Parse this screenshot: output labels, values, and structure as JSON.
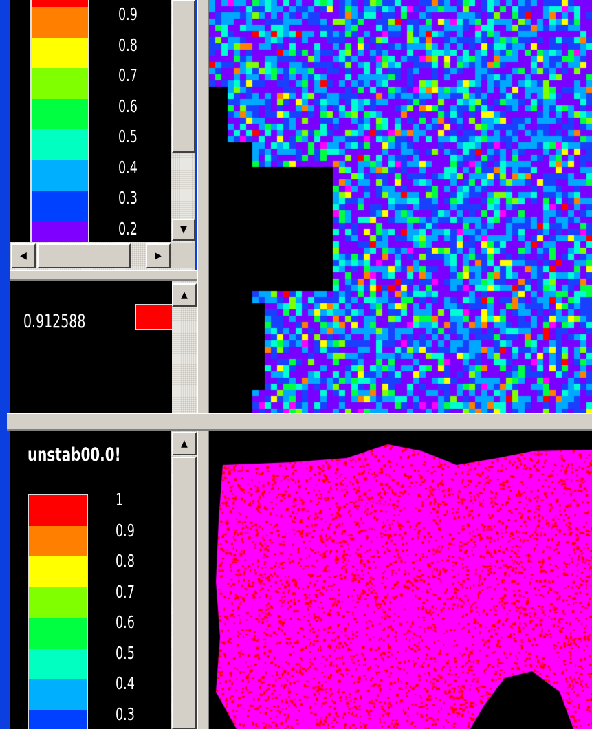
{
  "top_legend": {
    "ticks": [
      "0.9",
      "0.8",
      "0.7",
      "0.6",
      "0.5",
      "0.4",
      "0.3",
      "0.2"
    ],
    "colors": [
      "#ff8000",
      "#ffff00",
      "#80ff00",
      "#00ff40",
      "#00ffc0",
      "#00b0ff",
      "#0040ff",
      "#8000ff"
    ]
  },
  "probe": {
    "value": "0.912588",
    "swatch_color": "#ff0000"
  },
  "bottom_panel": {
    "title": "unstab00.0!",
    "ticks": [
      "1",
      "0.9",
      "0.8",
      "0.7",
      "0.6",
      "0.5",
      "0.4",
      "0.3"
    ],
    "colors": [
      "#ff0000",
      "#ff8000",
      "#ffff00",
      "#80ff00",
      "#00ff40",
      "#00ffc0",
      "#00b0ff",
      "#0040ff"
    ]
  },
  "icons": {
    "scroll_up": "▲",
    "scroll_down": "▼",
    "scroll_left": "◀",
    "scroll_right": "▶"
  }
}
